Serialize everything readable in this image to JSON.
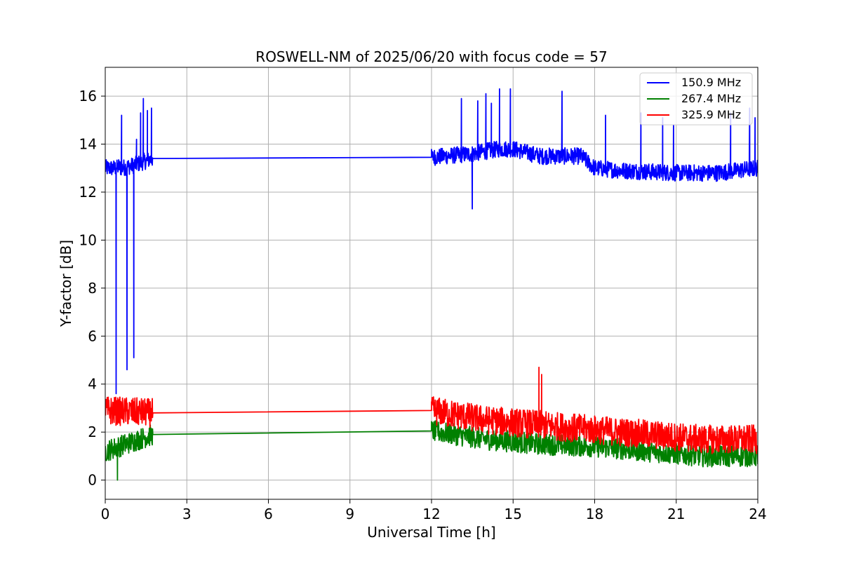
{
  "chart_data": {
    "type": "line",
    "title": "ROSWELL-NM of 2025/06/20 with focus code = 57",
    "xlabel": "Universal Time [h]",
    "ylabel": "Y-factor [dB]",
    "xlim": [
      0,
      24
    ],
    "ylim": [
      -0.8,
      17.2
    ],
    "xticks": [
      0,
      3,
      6,
      9,
      12,
      15,
      18,
      21,
      24
    ],
    "yticks": [
      0,
      2,
      4,
      6,
      8,
      10,
      12,
      14,
      16
    ],
    "grid": true,
    "legend_position": "top-right",
    "series": [
      {
        "name": "150.9 MHz",
        "color": "#0000ff",
        "noise_amplitude": 0.35,
        "x": [
          0,
          0.45,
          0.5,
          0.55,
          1.0,
          1.75,
          12.0,
          13.5,
          14.5,
          15.0,
          16.0,
          17.5,
          18.0,
          19.0,
          21.0,
          22.5,
          24.0
        ],
        "y": [
          13.0,
          13.0,
          13.1,
          13.0,
          13.1,
          13.4,
          13.45,
          13.6,
          13.8,
          13.8,
          13.5,
          13.5,
          13.0,
          12.9,
          12.8,
          12.8,
          13.0
        ],
        "spikes": [
          {
            "x": 0.4,
            "y": 3.6
          },
          {
            "x": 0.6,
            "y": 15.2
          },
          {
            "x": 0.8,
            "y": 4.6
          },
          {
            "x": 1.05,
            "y": 5.1
          },
          {
            "x": 1.15,
            "y": 14.2
          },
          {
            "x": 1.3,
            "y": 15.3
          },
          {
            "x": 1.4,
            "y": 15.9
          },
          {
            "x": 1.55,
            "y": 15.4
          },
          {
            "x": 1.7,
            "y": 15.5
          },
          {
            "x": 13.1,
            "y": 15.9
          },
          {
            "x": 13.5,
            "y": 11.3
          },
          {
            "x": 13.7,
            "y": 15.8
          },
          {
            "x": 14.0,
            "y": 16.1
          },
          {
            "x": 14.2,
            "y": 15.7
          },
          {
            "x": 14.5,
            "y": 16.3
          },
          {
            "x": 14.9,
            "y": 16.3
          },
          {
            "x": 16.8,
            "y": 16.2
          },
          {
            "x": 18.4,
            "y": 15.2
          },
          {
            "x": 19.7,
            "y": 15.3
          },
          {
            "x": 20.5,
            "y": 15.1
          },
          {
            "x": 20.9,
            "y": 14.8
          },
          {
            "x": 23.0,
            "y": 15.3
          },
          {
            "x": 23.7,
            "y": 15.5
          },
          {
            "x": 23.9,
            "y": 15.1
          }
        ]
      },
      {
        "name": "267.4 MHz",
        "color": "#008000",
        "noise_amplitude": 0.45,
        "x": [
          0,
          1.75,
          12.0,
          14.0,
          16.0,
          18.0,
          20.0,
          22.0,
          24.0
        ],
        "y": [
          1.2,
          1.9,
          2.05,
          1.7,
          1.5,
          1.4,
          1.2,
          1.0,
          1.0
        ],
        "spikes": [
          {
            "x": 0.45,
            "y": 0.0
          }
        ]
      },
      {
        "name": "325.9 MHz",
        "color": "#ff0000",
        "noise_amplitude": 0.6,
        "x": [
          0,
          1.75,
          12.0,
          14.0,
          16.0,
          18.0,
          20.0,
          22.0,
          24.0
        ],
        "y": [
          2.9,
          2.8,
          2.9,
          2.5,
          2.3,
          2.1,
          1.9,
          1.7,
          1.7
        ],
        "spikes": [
          {
            "x": 15.95,
            "y": 4.7
          },
          {
            "x": 16.05,
            "y": 4.4
          }
        ]
      }
    ],
    "data_gap": {
      "from": 1.75,
      "to": 12.0
    }
  }
}
